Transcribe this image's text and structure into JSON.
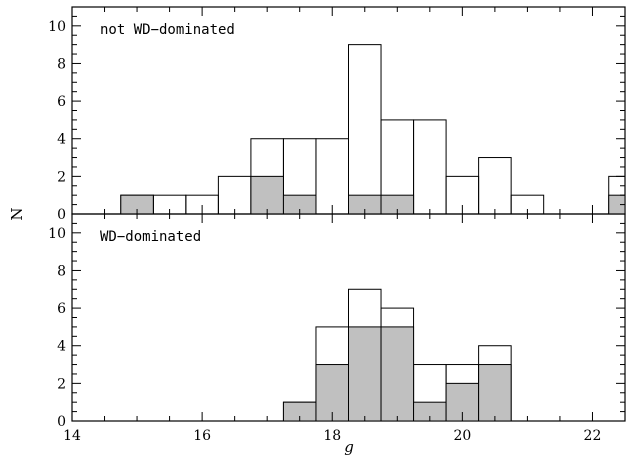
{
  "chart_data": [
    {
      "type": "bar",
      "histogram": true,
      "title": "not WD−dominated",
      "xlim": [
        14,
        22.5
      ],
      "ylim": [
        0,
        11
      ],
      "xticks": [
        14,
        16,
        18,
        20,
        22
      ],
      "yticks": [
        0,
        2,
        4,
        6,
        8,
        10
      ],
      "bin_width": 0.5,
      "series": [
        {
          "style": "outline",
          "bin_starts": [
            14.75,
            15.25,
            15.75,
            16.25,
            16.75,
            17.25,
            17.75,
            18.25,
            18.75,
            19.25,
            19.75,
            20.25,
            20.75,
            21.25,
            21.75,
            22.25
          ],
          "values": [
            1,
            1,
            1,
            2,
            4,
            4,
            4,
            9,
            5,
            5,
            2,
            3,
            1,
            0,
            0,
            2
          ]
        },
        {
          "style": "filled",
          "color": "#c0c0c0",
          "bin_starts": [
            14.75,
            15.25,
            15.75,
            16.25,
            16.75,
            17.25,
            17.75,
            18.25,
            18.75,
            19.25,
            19.75,
            20.25,
            20.75,
            21.25,
            21.75,
            22.25
          ],
          "values": [
            1,
            0,
            0,
            0,
            2,
            1,
            0,
            1,
            1,
            0,
            0,
            0,
            0,
            0,
            0,
            1
          ]
        }
      ]
    },
    {
      "type": "bar",
      "histogram": true,
      "title": "WD−dominated",
      "xlabel": "g",
      "xlim": [
        14,
        22.5
      ],
      "ylim": [
        0,
        11
      ],
      "xticks": [
        14,
        16,
        18,
        20,
        22
      ],
      "yticks": [
        0,
        2,
        4,
        6,
        8,
        10
      ],
      "bin_width": 0.5,
      "series": [
        {
          "style": "outline",
          "bin_starts": [
            17.25,
            17.75,
            18.25,
            18.75,
            19.25,
            19.75,
            20.25
          ],
          "values": [
            1,
            5,
            7,
            6,
            3,
            3,
            4
          ]
        },
        {
          "style": "filled",
          "color": "#c0c0c0",
          "bin_starts": [
            17.25,
            17.75,
            18.25,
            18.75,
            19.25,
            19.75,
            20.25
          ],
          "values": [
            1,
            3,
            5,
            5,
            1,
            2,
            3
          ]
        }
      ]
    }
  ],
  "shared_ylabel": "N"
}
